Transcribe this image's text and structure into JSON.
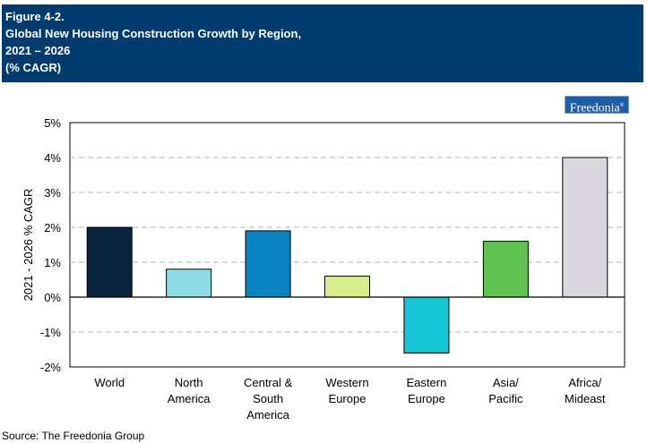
{
  "header": {
    "figure_label": "Figure 4-2.",
    "title_line1": "Global New Housing Construction Growth by Region,",
    "title_line2": "2021 – 2026",
    "title_line3": "(% CAGR)"
  },
  "logo_text": "Freedonia",
  "source": "Source: The Freedonia Group",
  "chart_data": {
    "type": "bar",
    "categories": [
      [
        "World"
      ],
      [
        "North",
        "America"
      ],
      [
        "Central &",
        "South",
        "America"
      ],
      [
        "Western",
        "Europe"
      ],
      [
        "Eastern",
        "Europe"
      ],
      [
        "Asia/",
        "Pacific"
      ],
      [
        "Africa/",
        "Mideast"
      ]
    ],
    "values": [
      2.0,
      0.8,
      1.9,
      0.6,
      -1.6,
      1.6,
      4.0
    ],
    "colors": [
      "#0a2440",
      "#8edde4",
      "#0a84c1",
      "#d8ee8a",
      "#17c6d6",
      "#5fc252",
      "#dad8de"
    ],
    "ylabel": "2021 - 2026 % CAGR",
    "ylim": [
      -2,
      5
    ],
    "yticks": [
      -2,
      -1,
      0,
      1,
      2,
      3,
      4,
      5
    ],
    "ytick_labels": [
      "-2%",
      "-1%",
      "0%",
      "1%",
      "2%",
      "3%",
      "4%",
      "5%"
    ],
    "grid": true
  }
}
